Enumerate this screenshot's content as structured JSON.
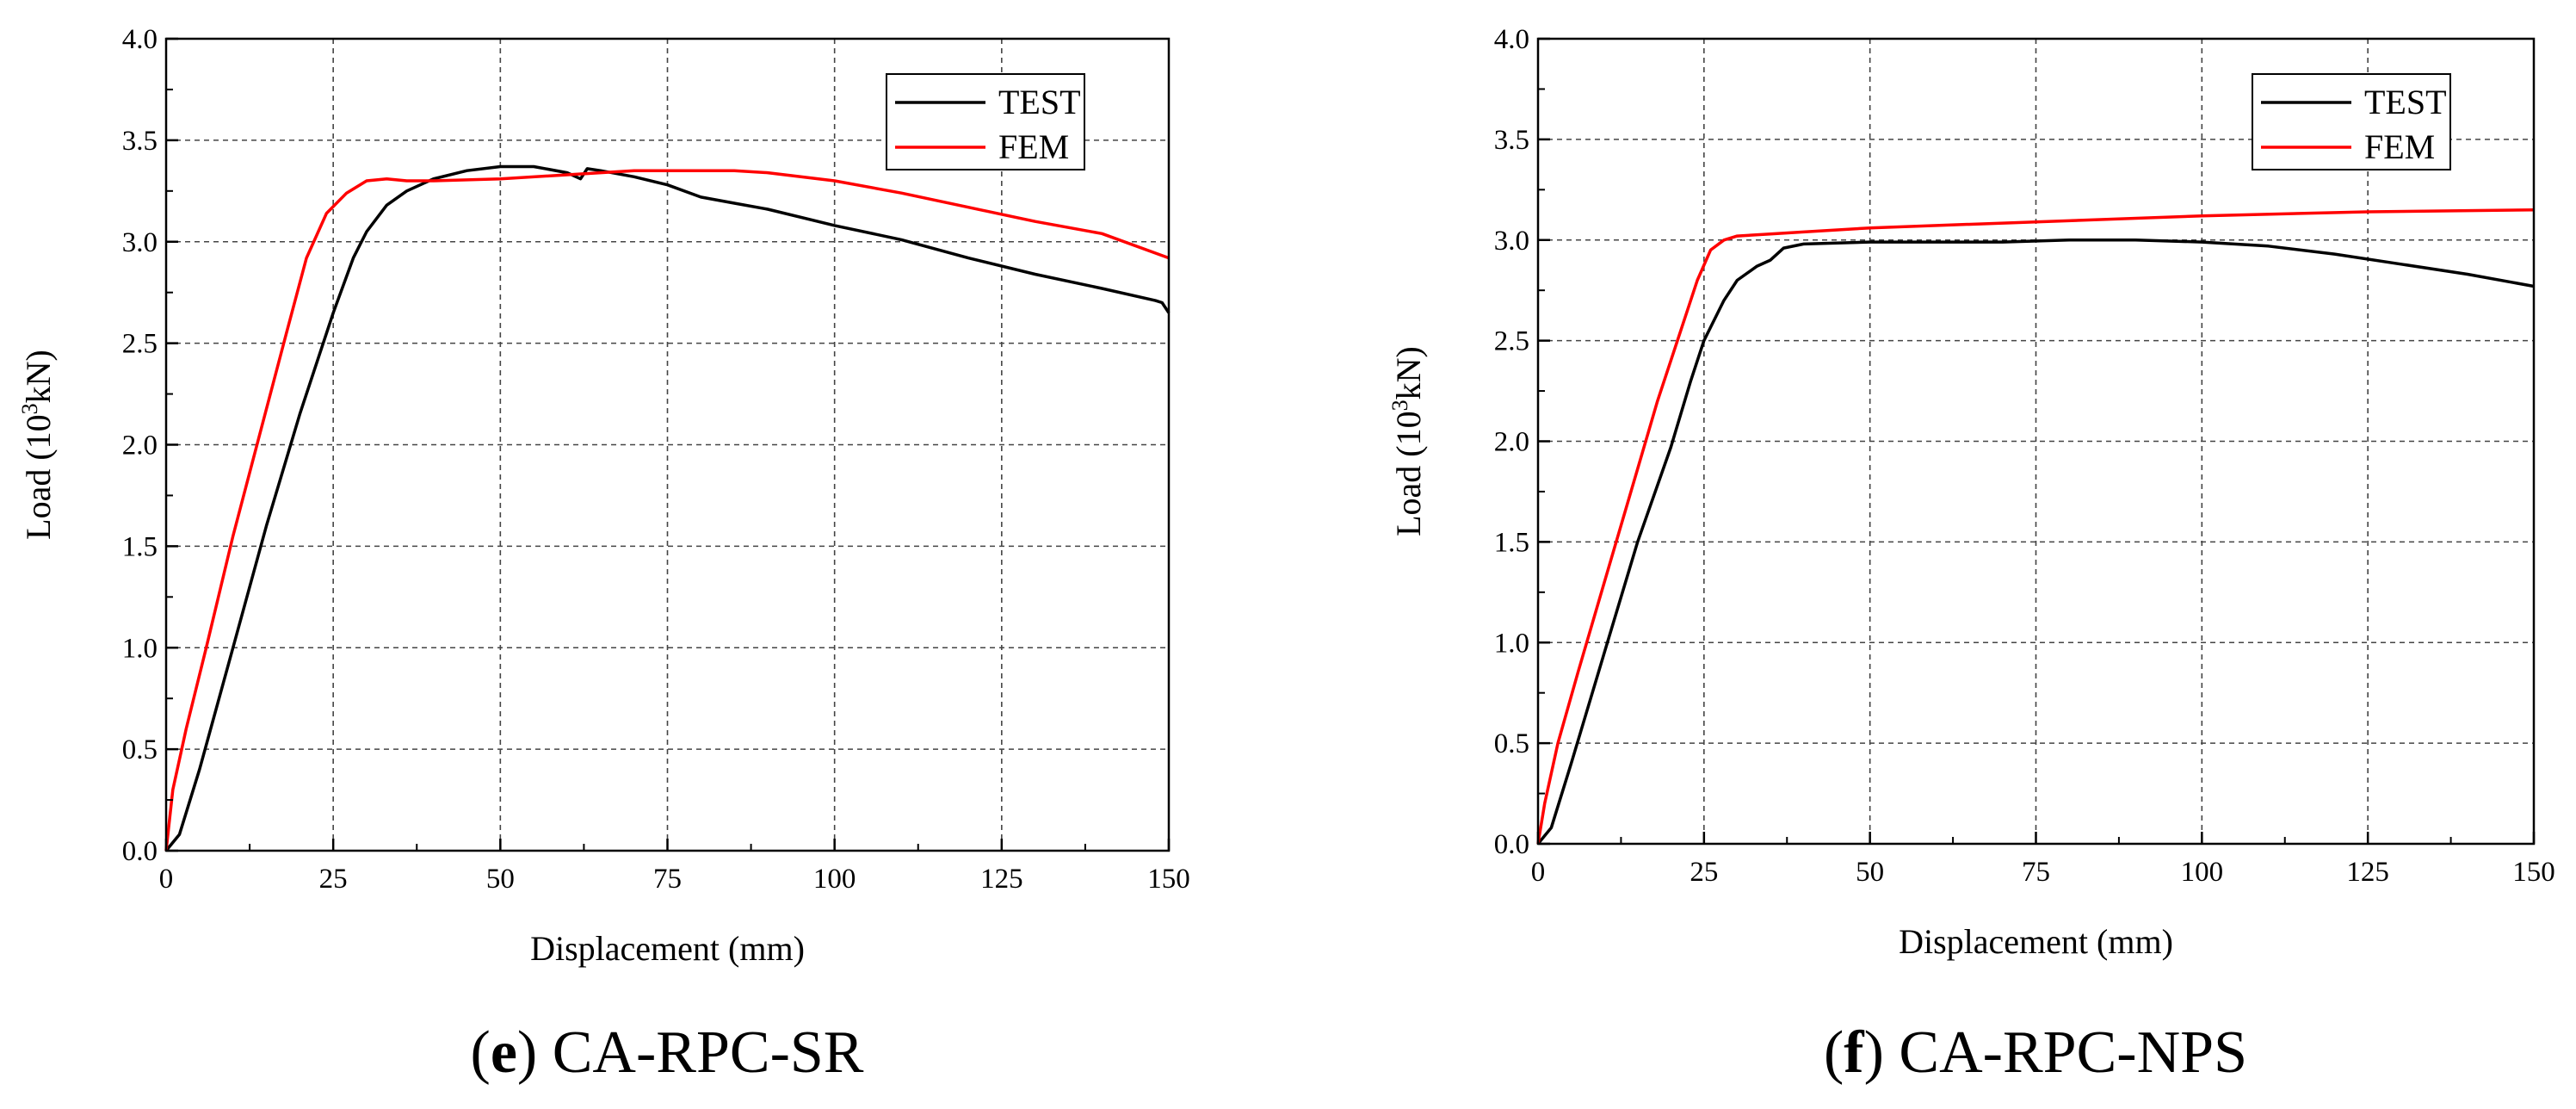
{
  "chart_data": [
    {
      "id": "panel-e",
      "type": "line",
      "caption_letter": "e",
      "caption_text": " CA-RPC-SR",
      "xlabel": "Displacement (mm)",
      "ylabel": "Load (10",
      "ylabel_sup": "3",
      "ylabel_unit": "kN)",
      "xlim": [
        0,
        150
      ],
      "ylim": [
        0,
        4
      ],
      "xticks": [
        0,
        25,
        50,
        75,
        100,
        125,
        150
      ],
      "yticks": [
        0,
        0.5,
        1,
        1.5,
        2,
        2.5,
        3,
        3.5,
        4
      ],
      "xtick_labels": [
        "0",
        "25",
        "50",
        "75",
        "100",
        "125",
        "150"
      ],
      "ytick_labels": [
        "0.0",
        "0.5",
        "1.0",
        "1.5",
        "2.0",
        "2.5",
        "3.0",
        "3.5",
        "4.0"
      ],
      "grid": true,
      "legend_position": "top-right",
      "series": [
        {
          "name": "TEST",
          "color": "#000000",
          "points": [
            [
              0,
              0
            ],
            [
              2,
              0.08
            ],
            [
              5,
              0.4
            ],
            [
              10,
              1.0
            ],
            [
              15,
              1.6
            ],
            [
              20,
              2.15
            ],
            [
              23,
              2.45
            ],
            [
              25,
              2.65
            ],
            [
              28,
              2.92
            ],
            [
              30,
              3.05
            ],
            [
              33,
              3.18
            ],
            [
              36,
              3.25
            ],
            [
              40,
              3.31
            ],
            [
              45,
              3.35
            ],
            [
              50,
              3.37
            ],
            [
              55,
              3.37
            ],
            [
              60,
              3.34
            ],
            [
              62,
              3.31
            ],
            [
              63,
              3.36
            ],
            [
              65,
              3.35
            ],
            [
              70,
              3.32
            ],
            [
              75,
              3.28
            ],
            [
              80,
              3.22
            ],
            [
              85,
              3.19
            ],
            [
              90,
              3.16
            ],
            [
              100,
              3.08
            ],
            [
              110,
              3.01
            ],
            [
              120,
              2.92
            ],
            [
              130,
              2.84
            ],
            [
              140,
              2.77
            ],
            [
              148,
              2.71
            ],
            [
              149,
              2.7
            ],
            [
              150,
              2.65
            ]
          ]
        },
        {
          "name": "FEM",
          "color": "#ff0000",
          "points": [
            [
              0,
              0
            ],
            [
              1,
              0.3
            ],
            [
              3,
              0.6
            ],
            [
              6,
              1.0
            ],
            [
              10,
              1.55
            ],
            [
              14,
              2.05
            ],
            [
              18,
              2.55
            ],
            [
              21,
              2.92
            ],
            [
              24,
              3.14
            ],
            [
              27,
              3.24
            ],
            [
              30,
              3.3
            ],
            [
              33,
              3.31
            ],
            [
              36,
              3.3
            ],
            [
              40,
              3.3
            ],
            [
              50,
              3.31
            ],
            [
              60,
              3.33
            ],
            [
              70,
              3.35
            ],
            [
              80,
              3.35
            ],
            [
              85,
              3.35
            ],
            [
              90,
              3.34
            ],
            [
              100,
              3.3
            ],
            [
              110,
              3.24
            ],
            [
              120,
              3.17
            ],
            [
              130,
              3.1
            ],
            [
              140,
              3.04
            ],
            [
              150,
              2.92
            ]
          ]
        }
      ]
    },
    {
      "id": "panel-f",
      "type": "line",
      "caption_letter": "f",
      "caption_text": " CA-RPC-NPS",
      "xlabel": "Displacement (mm)",
      "ylabel": "Load (10",
      "ylabel_sup": "3",
      "ylabel_unit": "kN)",
      "xlim": [
        0,
        150
      ],
      "ylim": [
        0,
        4
      ],
      "xticks": [
        0,
        25,
        50,
        75,
        100,
        125,
        150
      ],
      "yticks": [
        0,
        0.5,
        1,
        1.5,
        2,
        2.5,
        3,
        3.5,
        4
      ],
      "xtick_labels": [
        "0",
        "25",
        "50",
        "75",
        "100",
        "125",
        "150"
      ],
      "ytick_labels": [
        "0.0",
        "0.5",
        "1.0",
        "1.5",
        "2.0",
        "2.5",
        "3.0",
        "3.5",
        "4.0"
      ],
      "grid": true,
      "legend_position": "top-right",
      "series": [
        {
          "name": "TEST",
          "color": "#000000",
          "points": [
            [
              0,
              0
            ],
            [
              2,
              0.08
            ],
            [
              5,
              0.4
            ],
            [
              10,
              0.95
            ],
            [
              15,
              1.5
            ],
            [
              20,
              1.97
            ],
            [
              23,
              2.3
            ],
            [
              25,
              2.5
            ],
            [
              28,
              2.7
            ],
            [
              30,
              2.8
            ],
            [
              33,
              2.87
            ],
            [
              35,
              2.9
            ],
            [
              37,
              2.96
            ],
            [
              40,
              2.98
            ],
            [
              50,
              2.99
            ],
            [
              60,
              2.99
            ],
            [
              70,
              2.99
            ],
            [
              80,
              3.0
            ],
            [
              90,
              3.0
            ],
            [
              100,
              2.99
            ],
            [
              110,
              2.97
            ],
            [
              120,
              2.93
            ],
            [
              130,
              2.88
            ],
            [
              140,
              2.83
            ],
            [
              150,
              2.77
            ]
          ]
        },
        {
          "name": "FEM",
          "color": "#ff0000",
          "points": [
            [
              0,
              0
            ],
            [
              1,
              0.2
            ],
            [
              3,
              0.5
            ],
            [
              6,
              0.85
            ],
            [
              10,
              1.3
            ],
            [
              14,
              1.75
            ],
            [
              18,
              2.2
            ],
            [
              21,
              2.5
            ],
            [
              24,
              2.8
            ],
            [
              26,
              2.95
            ],
            [
              28,
              3.0
            ],
            [
              30,
              3.02
            ],
            [
              35,
              3.03
            ],
            [
              40,
              3.04
            ],
            [
              50,
              3.06
            ],
            [
              75,
              3.09
            ],
            [
              100,
              3.12
            ],
            [
              125,
              3.14
            ],
            [
              150,
              3.15
            ]
          ]
        }
      ]
    }
  ]
}
